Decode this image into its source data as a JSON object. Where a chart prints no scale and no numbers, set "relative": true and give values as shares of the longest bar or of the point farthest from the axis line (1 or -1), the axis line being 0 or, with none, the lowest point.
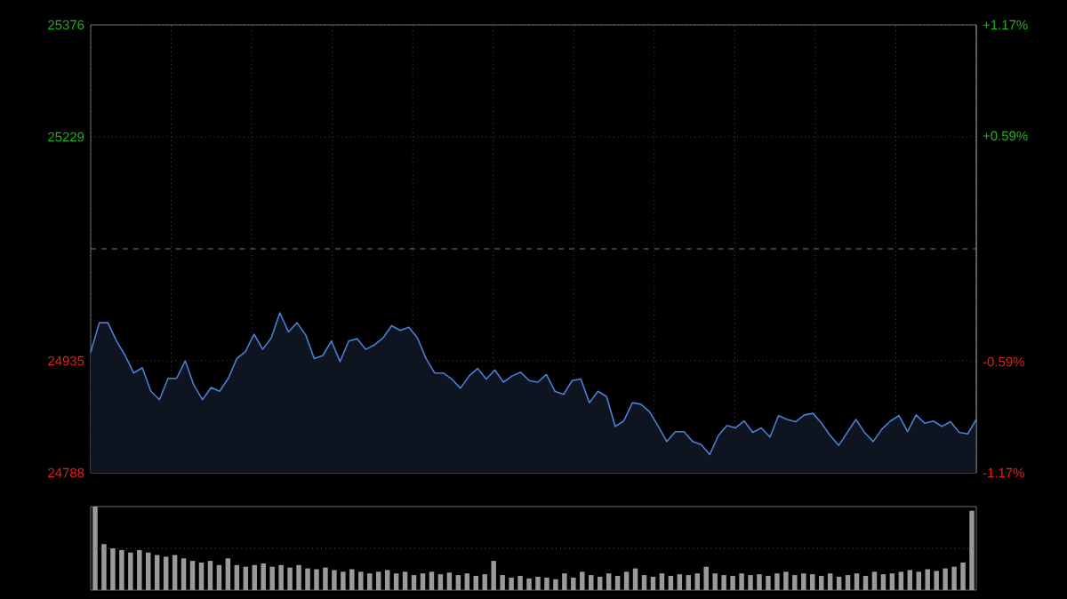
{
  "chart_data": [
    {
      "type": "area",
      "color": "#4a7fd4",
      "grid": true,
      "categories": [
        null,
        null,
        null,
        null,
        null,
        null,
        null,
        null,
        null,
        null,
        null,
        null,
        null,
        null,
        null,
        null,
        null,
        null,
        null,
        null,
        null,
        null,
        null,
        null,
        null,
        null,
        null,
        null,
        null,
        null,
        null,
        null,
        null,
        null,
        null,
        null,
        null,
        null,
        null,
        null,
        null,
        null,
        null,
        null,
        null,
        null,
        null,
        null,
        null,
        null,
        null,
        null,
        null,
        null,
        null,
        null,
        null,
        null,
        null,
        null,
        null,
        null,
        null,
        null,
        null,
        null,
        null,
        null,
        null,
        null,
        null,
        null,
        null,
        null,
        null,
        null,
        null,
        null,
        null,
        null,
        null,
        null,
        null,
        null,
        null,
        null,
        null,
        null,
        null,
        null,
        null,
        null,
        null,
        null,
        null,
        null,
        null,
        null,
        null,
        null,
        null,
        null,
        null,
        null
      ],
      "values": [
        24946,
        24985,
        24985,
        24961,
        24942,
        24919,
        24926,
        24895,
        24884,
        24912,
        24912,
        24935,
        24903,
        24884,
        24900,
        24895,
        24912,
        24938,
        24947,
        24970,
        24950,
        24965,
        24998,
        24973,
        24985,
        24969,
        24938,
        24942,
        24961,
        24934,
        24961,
        24964,
        24950,
        24956,
        24965,
        24981,
        24975,
        24979,
        24965,
        24938,
        24919,
        24919,
        24911,
        24899,
        24915,
        24925,
        24911,
        24923,
        24907,
        24915,
        24920,
        24909,
        24907,
        24917,
        24895,
        24891,
        24909,
        24911,
        24880,
        24895,
        24888,
        24849,
        24856,
        24880,
        24878,
        24868,
        24849,
        24829,
        24842,
        24842,
        24829,
        24825,
        24812,
        24837,
        24850,
        24847,
        24856,
        24841,
        24847,
        24835,
        24863,
        24858,
        24855,
        24864,
        24866,
        24853,
        24837,
        24824,
        24841,
        24858,
        24841,
        24829,
        24845,
        24856,
        24863,
        24842,
        24864,
        24853,
        24856,
        24849,
        24855,
        24841,
        24839,
        24858
      ],
      "ylim": [
        24788,
        25376
      ],
      "yticks": [
        24788,
        24935,
        25229,
        25376
      ],
      "y2lim": [
        -1.17,
        1.17
      ],
      "y2ticks": [
        {
          "value": -1.17,
          "label": "-1.17%"
        },
        {
          "value": -0.59,
          "label": "-0.59%"
        },
        {
          "value": 0.59,
          "label": "+0.59%"
        },
        {
          "value": 1.17,
          "label": "+1.17%"
        }
      ],
      "ref_lines": [
        {
          "axis": "y",
          "value": 25082,
          "line_style": "dashed"
        }
      ]
    },
    {
      "type": "bar",
      "color": "#9a9a9a",
      "relative": true,
      "ref_lines": [
        {
          "axis": "y",
          "value": 0.5,
          "line_style": "dotted"
        }
      ],
      "categories": [
        null,
        null,
        null,
        null,
        null,
        null,
        null,
        null,
        null,
        null,
        null,
        null,
        null,
        null,
        null,
        null,
        null,
        null,
        null,
        null,
        null,
        null,
        null,
        null,
        null,
        null,
        null,
        null,
        null,
        null,
        null,
        null,
        null,
        null,
        null,
        null,
        null,
        null,
        null,
        null,
        null,
        null,
        null,
        null,
        null,
        null,
        null,
        null,
        null,
        null,
        null,
        null,
        null,
        null,
        null,
        null,
        null,
        null,
        null,
        null,
        null,
        null,
        null,
        null,
        null,
        null,
        null,
        null,
        null,
        null,
        null,
        null,
        null,
        null,
        null,
        null,
        null,
        null,
        null,
        null,
        null,
        null,
        null,
        null,
        null,
        null,
        null,
        null,
        null,
        null,
        null,
        null,
        null,
        null,
        null,
        null,
        null,
        null,
        null,
        null
      ],
      "values": [
        1.0,
        0.55,
        0.5,
        0.48,
        0.45,
        0.48,
        0.45,
        0.42,
        0.4,
        0.42,
        0.38,
        0.35,
        0.33,
        0.35,
        0.3,
        0.38,
        0.3,
        0.28,
        0.3,
        0.32,
        0.28,
        0.3,
        0.27,
        0.3,
        0.26,
        0.25,
        0.27,
        0.24,
        0.22,
        0.25,
        0.22,
        0.2,
        0.22,
        0.24,
        0.2,
        0.22,
        0.18,
        0.2,
        0.22,
        0.19,
        0.21,
        0.18,
        0.2,
        0.17,
        0.19,
        0.35,
        0.18,
        0.15,
        0.17,
        0.14,
        0.16,
        0.15,
        0.13,
        0.2,
        0.15,
        0.22,
        0.18,
        0.16,
        0.2,
        0.17,
        0.22,
        0.26,
        0.18,
        0.16,
        0.2,
        0.17,
        0.19,
        0.18,
        0.2,
        0.28,
        0.2,
        0.18,
        0.17,
        0.2,
        0.18,
        0.19,
        0.17,
        0.2,
        0.22,
        0.18,
        0.2,
        0.19,
        0.17,
        0.2,
        0.16,
        0.18,
        0.2,
        0.17,
        0.22,
        0.19,
        0.2,
        0.22,
        0.24,
        0.22,
        0.25,
        0.23,
        0.26,
        0.28,
        0.33,
        0.95
      ]
    }
  ]
}
